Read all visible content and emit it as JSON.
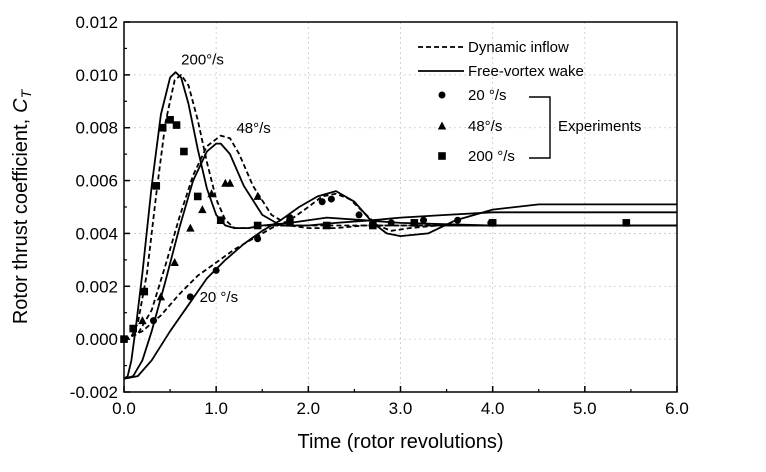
{
  "chart_data": {
    "type": "line",
    "xlabel": "Time (rotor revolutions)",
    "ylabel": "Rotor thrust coefficient,",
    "ylabel_symbol": "C",
    "ylabel_subscript": "T",
    "xlim": [
      0,
      6
    ],
    "ylim": [
      -0.002,
      0.012
    ],
    "xticks": [
      0.0,
      1.0,
      2.0,
      3.0,
      4.0,
      5.0,
      6.0
    ],
    "xtick_labels": [
      "0.0",
      "1.0",
      "2.0",
      "3.0",
      "4.0",
      "5.0",
      "6.0"
    ],
    "yticks": [
      -0.002,
      0.0,
      0.002,
      0.004,
      0.006,
      0.008,
      0.01,
      0.012
    ],
    "ytick_labels": [
      "-0.002",
      "0.000",
      "0.002",
      "0.004",
      "0.006",
      "0.008",
      "0.010",
      "0.012"
    ],
    "grid": true,
    "legend": {
      "position": "top-right",
      "lines": [
        {
          "label": "Dynamic inflow",
          "style": "dashed"
        },
        {
          "label": "Free-vortex wake",
          "style": "solid"
        }
      ],
      "markers": [
        {
          "label": "20 °/s",
          "marker": "circle"
        },
        {
          "label": "48°/s",
          "marker": "triangle"
        },
        {
          "label": "200 °/s",
          "marker": "square"
        }
      ],
      "group_label": "Experiments"
    },
    "annotations": [
      {
        "text": "200°/s",
        "x": 0.62,
        "y": 0.0104
      },
      {
        "text": "48°/s",
        "x": 1.22,
        "y": 0.0078
      },
      {
        "text": "20 °/s",
        "x": 0.82,
        "y": 0.0014
      }
    ],
    "series": [
      {
        "group": "Dynamic inflow",
        "rate": "200",
        "style": "dashed",
        "x": [
          0,
          0.08,
          0.15,
          0.25,
          0.35,
          0.45,
          0.55,
          0.62,
          0.7,
          0.8,
          0.9,
          1.0,
          1.1,
          1.2,
          1.35,
          1.5,
          1.8,
          2.5,
          4,
          6
        ],
        "y": [
          0.0,
          0.0001,
          0.0006,
          0.0025,
          0.0055,
          0.0082,
          0.0098,
          0.01,
          0.0096,
          0.0083,
          0.0067,
          0.0053,
          0.0045,
          0.0042,
          0.0042,
          0.0043,
          0.0043,
          0.0043,
          0.0043,
          0.0043
        ]
      },
      {
        "group": "Free-vortex wake",
        "rate": "200",
        "style": "solid",
        "x": [
          0,
          0.04,
          0.08,
          0.13,
          0.2,
          0.3,
          0.4,
          0.5,
          0.56,
          0.62,
          0.7,
          0.8,
          0.9,
          1.0,
          1.1,
          1.2,
          1.35,
          1.5,
          1.8,
          2.2,
          2.6,
          3.0,
          4.0,
          5.0,
          6.0
        ],
        "y": [
          -0.0015,
          -0.0014,
          -0.0008,
          0.0005,
          0.0025,
          0.0058,
          0.0085,
          0.0099,
          0.0101,
          0.0099,
          0.0089,
          0.0072,
          0.0057,
          0.0047,
          0.0043,
          0.0042,
          0.0042,
          0.0043,
          0.0044,
          0.0046,
          0.0045,
          0.0044,
          0.0043,
          0.0043,
          0.0043
        ]
      },
      {
        "group": "Dynamic inflow",
        "rate": "48",
        "style": "dashed",
        "x": [
          0,
          0.15,
          0.3,
          0.45,
          0.6,
          0.75,
          0.9,
          1.05,
          1.15,
          1.25,
          1.4,
          1.6,
          1.8,
          2.0,
          2.3,
          2.6,
          3.0,
          4.0,
          6.0
        ],
        "y": [
          0.0,
          0.0002,
          0.0011,
          0.0028,
          0.0046,
          0.0062,
          0.0073,
          0.0077,
          0.0076,
          0.007,
          0.0058,
          0.0047,
          0.0043,
          0.0042,
          0.0042,
          0.0043,
          0.0043,
          0.0043,
          0.0043
        ]
      },
      {
        "group": "Free-vortex wake",
        "rate": "48",
        "style": "solid",
        "x": [
          0,
          0.1,
          0.2,
          0.3,
          0.45,
          0.6,
          0.75,
          0.9,
          1.0,
          1.05,
          1.15,
          1.3,
          1.5,
          1.7,
          2.0,
          2.3,
          2.7,
          3.0,
          3.5,
          4.0,
          5.0,
          6.0
        ],
        "y": [
          -0.0015,
          -0.0014,
          -0.0008,
          0.0003,
          0.0022,
          0.0042,
          0.006,
          0.0071,
          0.0074,
          0.0074,
          0.007,
          0.0058,
          0.0047,
          0.0043,
          0.0043,
          0.0044,
          0.0045,
          0.0046,
          0.0047,
          0.0048,
          0.0048,
          0.0048
        ]
      },
      {
        "group": "Dynamic inflow",
        "rate": "20",
        "style": "dashed",
        "x": [
          0,
          0.2,
          0.4,
          0.6,
          0.8,
          1.0,
          1.2,
          1.4,
          1.6,
          1.8,
          2.0,
          2.15,
          2.3,
          2.45,
          2.6,
          2.75,
          2.9,
          3.1,
          3.4,
          4.0,
          6.0
        ],
        "y": [
          0.0,
          0.0003,
          0.0009,
          0.0017,
          0.0024,
          0.0029,
          0.0034,
          0.0038,
          0.0042,
          0.0045,
          0.005,
          0.0054,
          0.0055,
          0.0053,
          0.0048,
          0.0043,
          0.0041,
          0.0042,
          0.0043,
          0.0043,
          0.0043
        ]
      },
      {
        "group": "Free-vortex wake",
        "rate": "20",
        "style": "solid",
        "x": [
          0,
          0.15,
          0.3,
          0.5,
          0.7,
          0.9,
          1.1,
          1.3,
          1.5,
          1.7,
          1.9,
          2.1,
          2.3,
          2.5,
          2.7,
          2.85,
          3.0,
          3.3,
          3.6,
          4.0,
          4.5,
          5.0,
          6.0
        ],
        "y": [
          -0.0015,
          -0.0014,
          -0.0008,
          0.0003,
          0.0013,
          0.0023,
          0.003,
          0.0036,
          0.0041,
          0.0045,
          0.005,
          0.0054,
          0.0056,
          0.0052,
          0.0044,
          0.004,
          0.0039,
          0.004,
          0.0045,
          0.0049,
          0.0051,
          0.0051,
          0.0051
        ]
      }
    ],
    "experiments": [
      {
        "label": "20 °/s",
        "marker": "circle",
        "x": [
          0.32,
          0.72,
          1.0,
          1.45,
          1.8,
          2.15,
          2.25,
          2.55,
          2.9,
          3.25,
          3.62,
          3.98
        ],
        "y": [
          0.0007,
          0.0016,
          0.0026,
          0.0038,
          0.0046,
          0.0052,
          0.0053,
          0.0047,
          0.0044,
          0.0045,
          0.0045,
          0.0044
        ]
      },
      {
        "label": "48°/s",
        "marker": "triangle",
        "x": [
          0.2,
          0.4,
          0.55,
          0.72,
          0.85,
          0.95,
          1.1,
          1.15,
          1.45
        ],
        "y": [
          0.0007,
          0.0016,
          0.0029,
          0.0042,
          0.0049,
          0.0055,
          0.0059,
          0.0059,
          0.0054
        ]
      },
      {
        "label": "200 °/s",
        "marker": "square",
        "x": [
          0.0,
          0.1,
          0.22,
          0.35,
          0.42,
          0.5,
          0.57,
          0.65,
          0.8,
          1.05,
          1.45,
          1.8,
          2.2,
          2.7,
          3.15,
          4.0,
          5.45
        ],
        "y": [
          0.0,
          0.0004,
          0.0018,
          0.0058,
          0.008,
          0.0083,
          0.0081,
          0.0071,
          0.0054,
          0.0045,
          0.0043,
          0.0044,
          0.0043,
          0.0043,
          0.0044,
          0.0044,
          0.0044
        ]
      }
    ]
  }
}
